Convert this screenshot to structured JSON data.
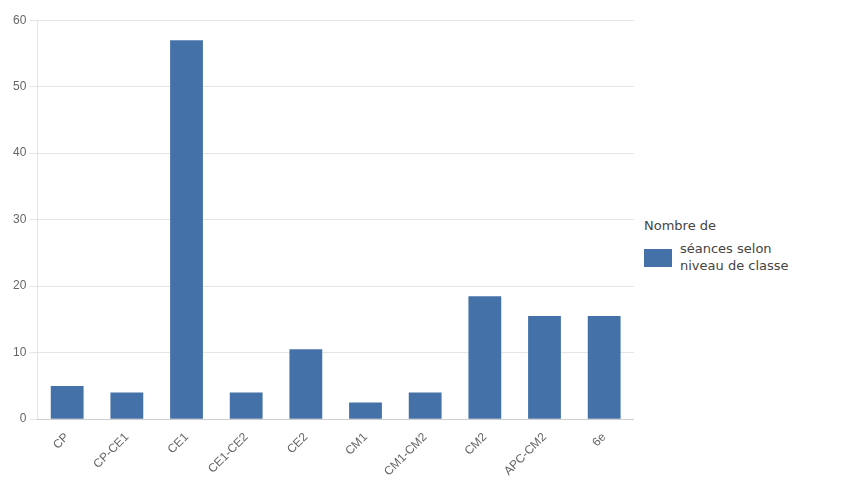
{
  "chart_data": {
    "type": "bar",
    "categories": [
      "CP",
      "CP-CE1",
      "CE1",
      "CE1-CE2",
      "CE2",
      "CM1",
      "CM1-CM2",
      "CM2",
      "APC-CM2",
      "6e"
    ],
    "series": [
      {
        "name": "séances selon\nniveau de classe",
        "color": "#4472a8",
        "values": [
          5,
          4,
          57,
          4,
          10.5,
          2.5,
          4,
          18.5,
          15.5,
          15.5
        ]
      }
    ],
    "legend_title": "Nombre de",
    "legend": "right",
    "ylim": [
      0,
      60
    ],
    "yticks": [
      0,
      10,
      20,
      30,
      40,
      50,
      60
    ],
    "grid": true
  }
}
